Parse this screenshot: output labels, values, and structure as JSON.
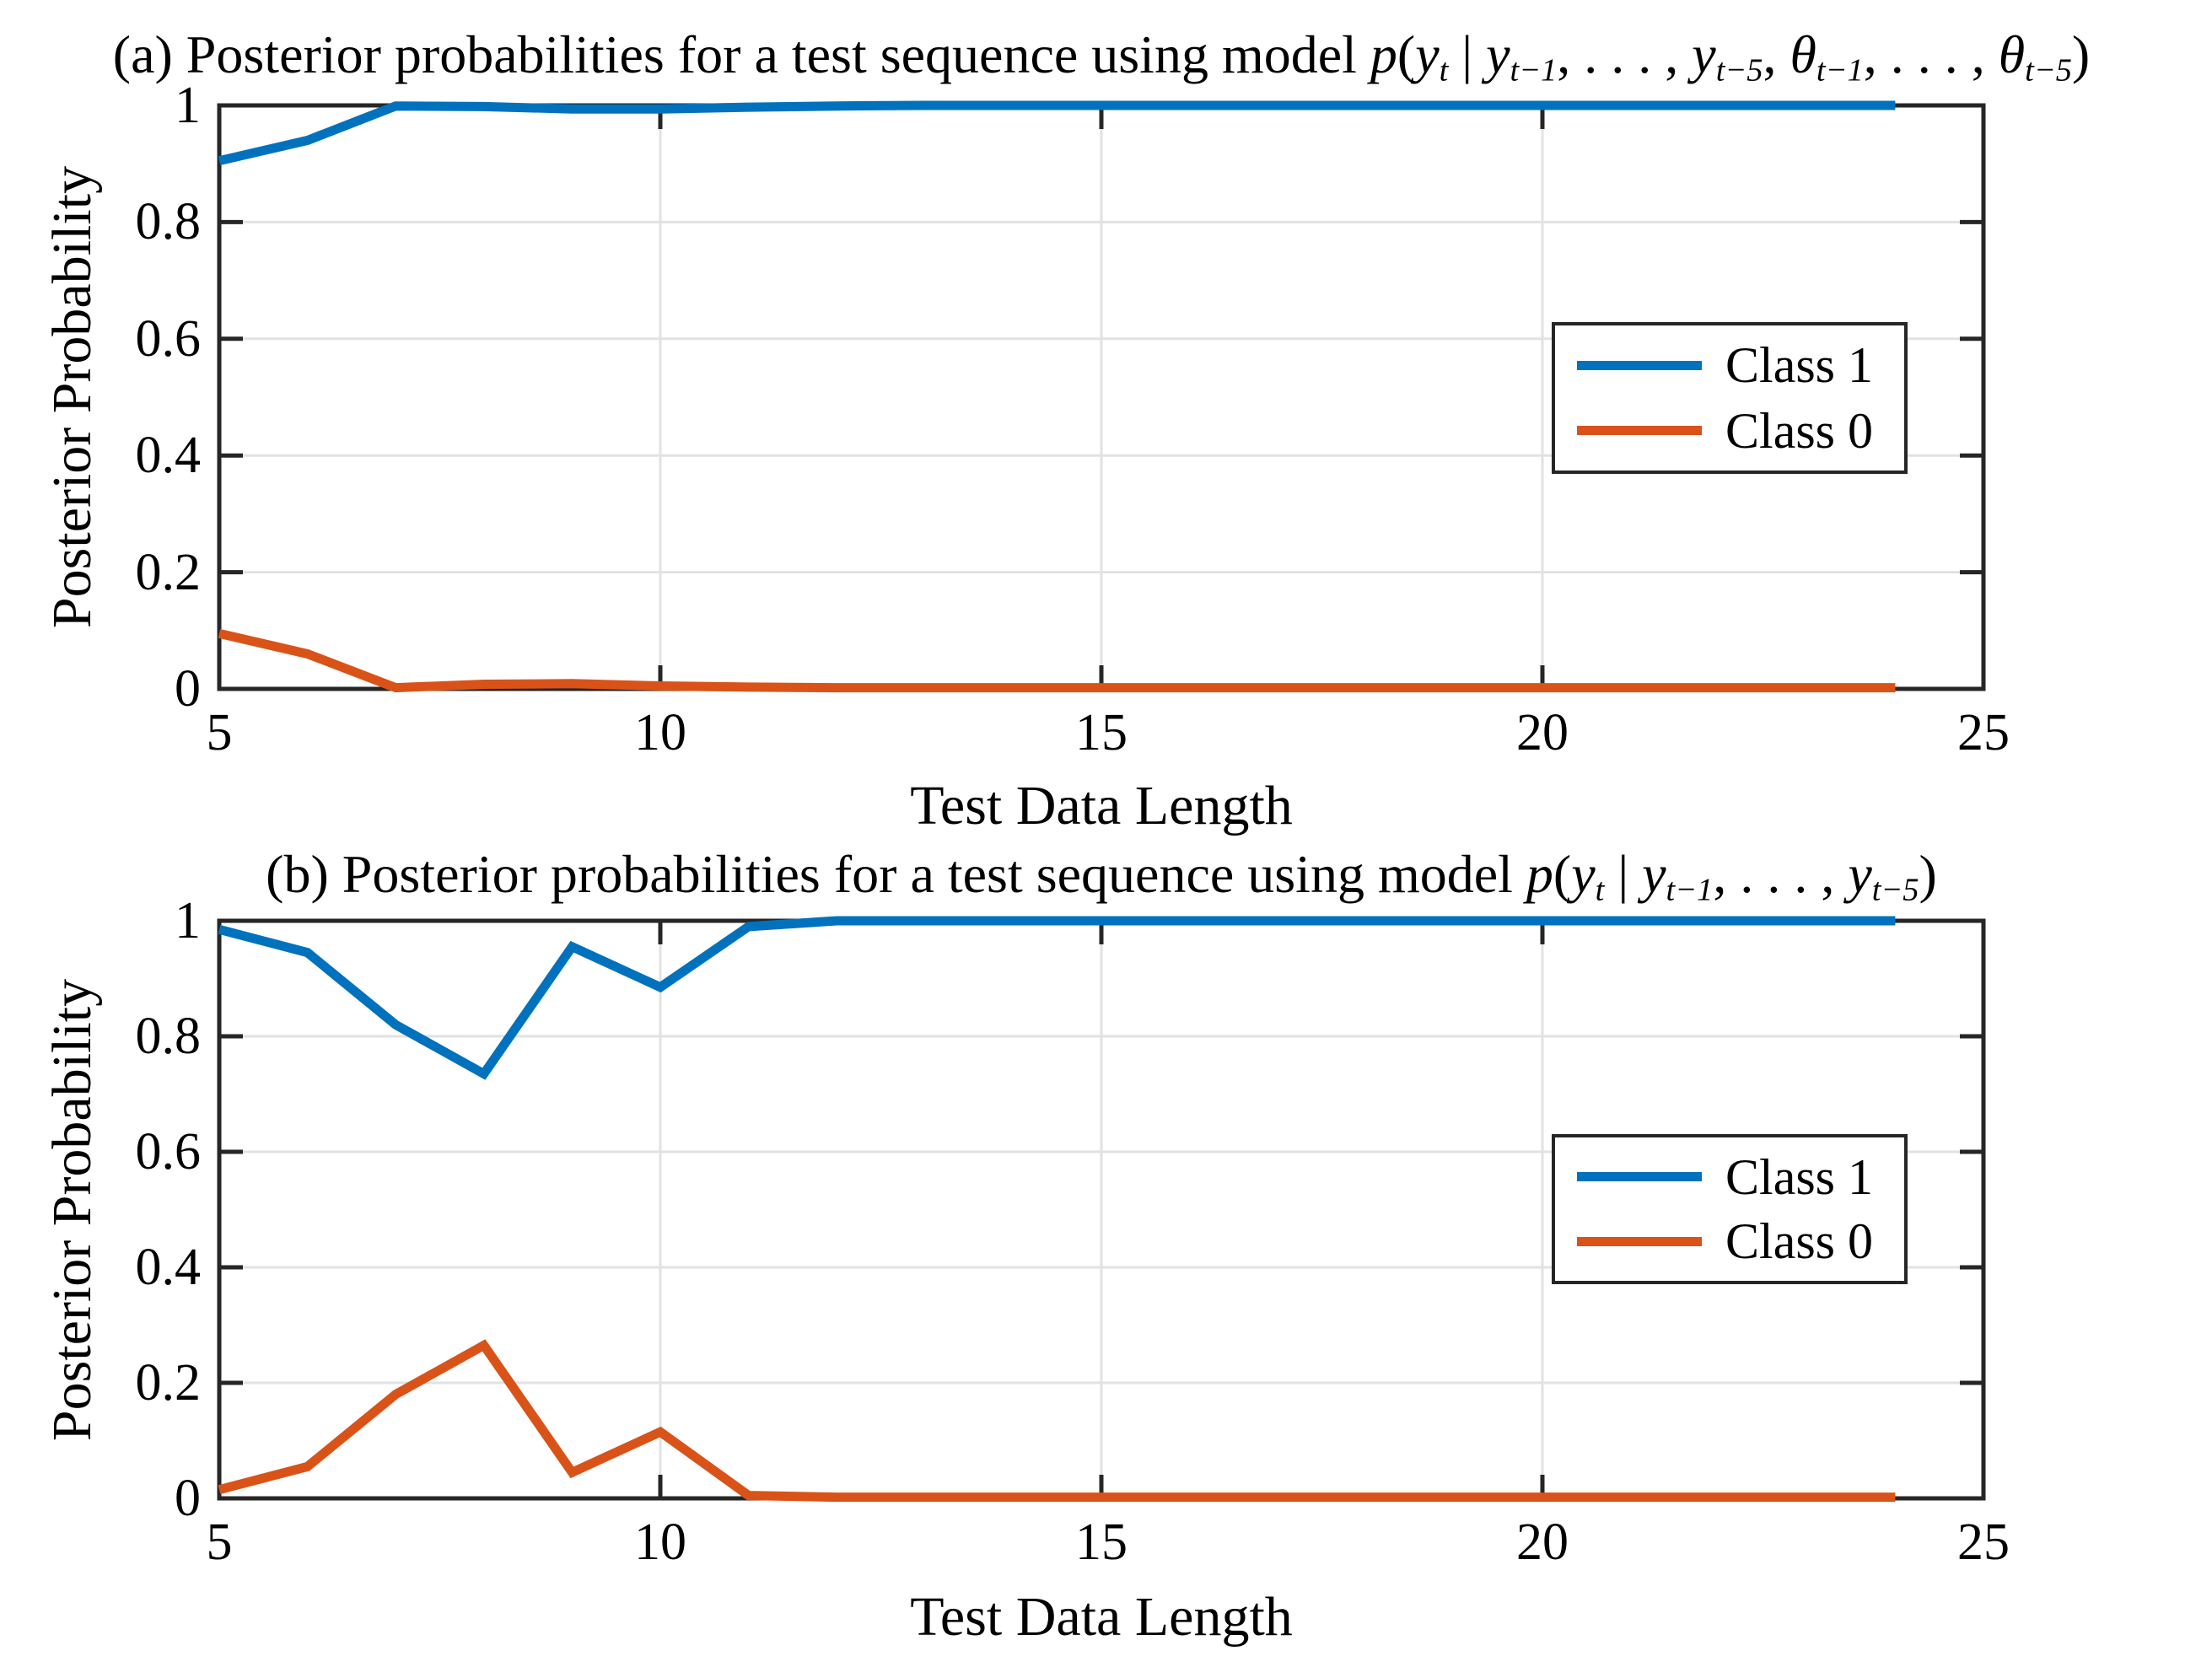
{
  "figure": {
    "background": "#ffffff",
    "axis_color": "#262626",
    "grid_color": "#e2e2e2",
    "series_blue": "#0072BD",
    "series_orange": "#D95319"
  },
  "chart_data": [
    {
      "type": "line",
      "panel": "a",
      "title_text": "(a) Posterior probabilities for a test sequence using model p(yt | yt−1, . . . , yt−5, θt−1, . . . , θt−5)",
      "title_tokens": [
        {
          "text": "(a) Posterior probabilities for a test sequence using model "
        },
        {
          "text": "p",
          "italic": true
        },
        {
          "text": "("
        },
        {
          "text": "y",
          "italic": true,
          "sub": "t"
        },
        {
          "text": " | "
        },
        {
          "text": "y",
          "italic": true,
          "sub": "t−1"
        },
        {
          "text": ", . . . , "
        },
        {
          "text": "y",
          "italic": true,
          "sub": "t−5"
        },
        {
          "text": ", "
        },
        {
          "text": "θ",
          "italic": true,
          "sub": "t−1"
        },
        {
          "text": ", . . . , "
        },
        {
          "text": "θ",
          "italic": true,
          "sub": "t−5"
        },
        {
          "text": ")"
        }
      ],
      "xlabel": "Test Data Length",
      "ylabel": "Posterior Probability",
      "xlim": [
        5,
        25
      ],
      "ylim": [
        0,
        1
      ],
      "grid": true,
      "xticks": [
        5,
        10,
        15,
        20,
        25
      ],
      "xtick_labels": [
        "5",
        "10",
        "15",
        "20",
        "25"
      ],
      "yticks": [
        0,
        0.2,
        0.4,
        0.6,
        0.8,
        1
      ],
      "ytick_labels": [
        "0",
        "0.2",
        "0.4",
        "0.6",
        "0.8",
        "1"
      ],
      "x": [
        5,
        6,
        7,
        8,
        9,
        10,
        11,
        12,
        13,
        14,
        15,
        16,
        17,
        18,
        19,
        20,
        21,
        22,
        23,
        24
      ],
      "series": [
        {
          "name": "Class 1",
          "color": "#0072BD",
          "values": [
            0.905,
            0.94,
            0.999,
            0.998,
            0.994,
            0.994,
            0.997,
            0.999,
            1,
            1,
            1,
            1,
            1,
            1,
            1,
            1,
            1,
            1,
            1,
            1
          ]
        },
        {
          "name": "Class 0",
          "color": "#D95319",
          "values": [
            0.095,
            0.06,
            0.002,
            0.008,
            0.009,
            0.005,
            0.003,
            0.002,
            0.002,
            0.002,
            0.002,
            0.002,
            0.002,
            0.002,
            0.002,
            0.002,
            0.002,
            0.002,
            0.002,
            0.002
          ]
        }
      ],
      "legend": {
        "position": "middle-right",
        "entries": [
          "Class 1",
          "Class 0"
        ]
      }
    },
    {
      "type": "line",
      "panel": "b",
      "title_text": "(b) Posterior probabilities for a test sequence using model p(yt | yt−1, . . . , yt−5)",
      "title_tokens": [
        {
          "text": "(b) Posterior probabilities for a test sequence using model "
        },
        {
          "text": "p",
          "italic": true
        },
        {
          "text": "("
        },
        {
          "text": "y",
          "italic": true,
          "sub": "t"
        },
        {
          "text": " | "
        },
        {
          "text": "y",
          "italic": true,
          "sub": "t−1"
        },
        {
          "text": ", . . . , "
        },
        {
          "text": "y",
          "italic": true,
          "sub": "t−5"
        },
        {
          "text": ")"
        }
      ],
      "xlabel": "Test Data Length",
      "ylabel": "Posterior Probability",
      "xlim": [
        5,
        25
      ],
      "ylim": [
        0,
        1
      ],
      "grid": true,
      "xticks": [
        5,
        10,
        15,
        20,
        25
      ],
      "xtick_labels": [
        "5",
        "10",
        "15",
        "20",
        "25"
      ],
      "yticks": [
        0,
        0.2,
        0.4,
        0.6,
        0.8,
        1
      ],
      "ytick_labels": [
        "0",
        "0.2",
        "0.4",
        "0.6",
        "0.8",
        "1"
      ],
      "x": [
        5,
        6,
        7,
        8,
        9,
        10,
        11,
        12,
        13,
        14,
        15,
        16,
        17,
        18,
        19,
        20,
        21,
        22,
        23,
        24
      ],
      "series": [
        {
          "name": "Class 1",
          "color": "#0072BD",
          "values": [
            0.985,
            0.945,
            0.82,
            0.735,
            0.955,
            0.885,
            0.99,
            1,
            1,
            1,
            1,
            1,
            1,
            1,
            1,
            1,
            1,
            1,
            1,
            1
          ]
        },
        {
          "name": "Class 0",
          "color": "#D95319",
          "values": [
            0.015,
            0.055,
            0.18,
            0.265,
            0.045,
            0.115,
            0.005,
            0.002,
            0.002,
            0.002,
            0.002,
            0.002,
            0.002,
            0.002,
            0.002,
            0.002,
            0.002,
            0.002,
            0.002,
            0.002
          ]
        }
      ],
      "legend": {
        "position": "middle-right",
        "entries": [
          "Class 1",
          "Class 0"
        ]
      }
    }
  ]
}
